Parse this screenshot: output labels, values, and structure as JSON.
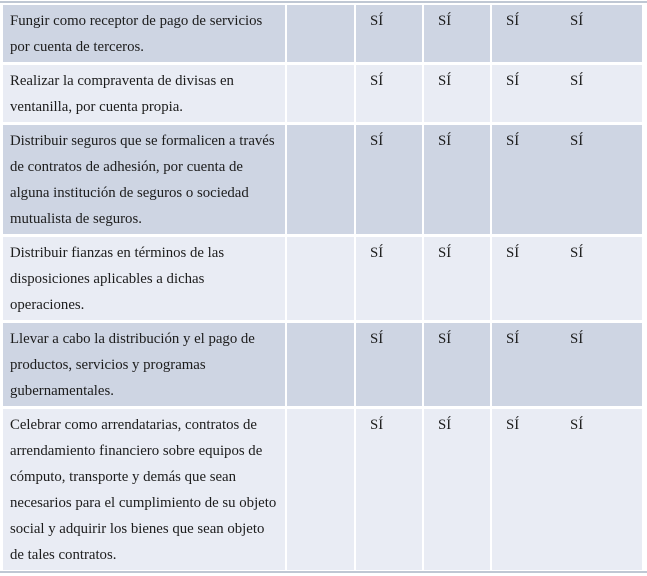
{
  "colors": {
    "row_dark": "#ced5e3",
    "row_light": "#e9ecf4",
    "border_line": "#bfc7d3",
    "text": "#1c1c1c"
  },
  "table": {
    "rows": [
      {
        "activity": "Fungir como receptor de pago de servicios\npor cuenta de terceros.",
        "values": [
          "SÍ",
          "SÍ",
          "SÍ",
          "SÍ"
        ]
      },
      {
        "activity": "Realizar la compraventa de divisas en\nventanilla, por cuenta propia.",
        "values": [
          "SÍ",
          "SÍ",
          "SÍ",
          "SÍ"
        ]
      },
      {
        "activity": "Distribuir seguros que se formalicen a través\nde contratos de adhesión, por cuenta de\nalguna institución de seguros o sociedad\nmutualista de seguros.",
        "values": [
          "SÍ",
          "SÍ",
          "SÍ",
          "SÍ"
        ]
      },
      {
        "activity": "Distribuir fianzas en términos de las\ndisposiciones aplicables a dichas\noperaciones.",
        "values": [
          "SÍ",
          "SÍ",
          "SÍ",
          "SÍ"
        ]
      },
      {
        "activity": "Llevar a cabo la distribución y el pago de\nproductos, servicios y programas\ngubernamentales.",
        "values": [
          "SÍ",
          "SÍ",
          "SÍ",
          "SÍ"
        ]
      },
      {
        "activity": "Celebrar como arrendatarias, contratos de\narrendamiento financiero sobre equipos de\ncómputo, transporte y demás que sean\nnecesarios para el cumplimiento de su objeto\nsocial y adquirir los bienes que sean objeto\nde tales contratos.",
        "values": [
          "SÍ",
          "SÍ",
          "SÍ",
          "SÍ"
        ]
      }
    ]
  }
}
